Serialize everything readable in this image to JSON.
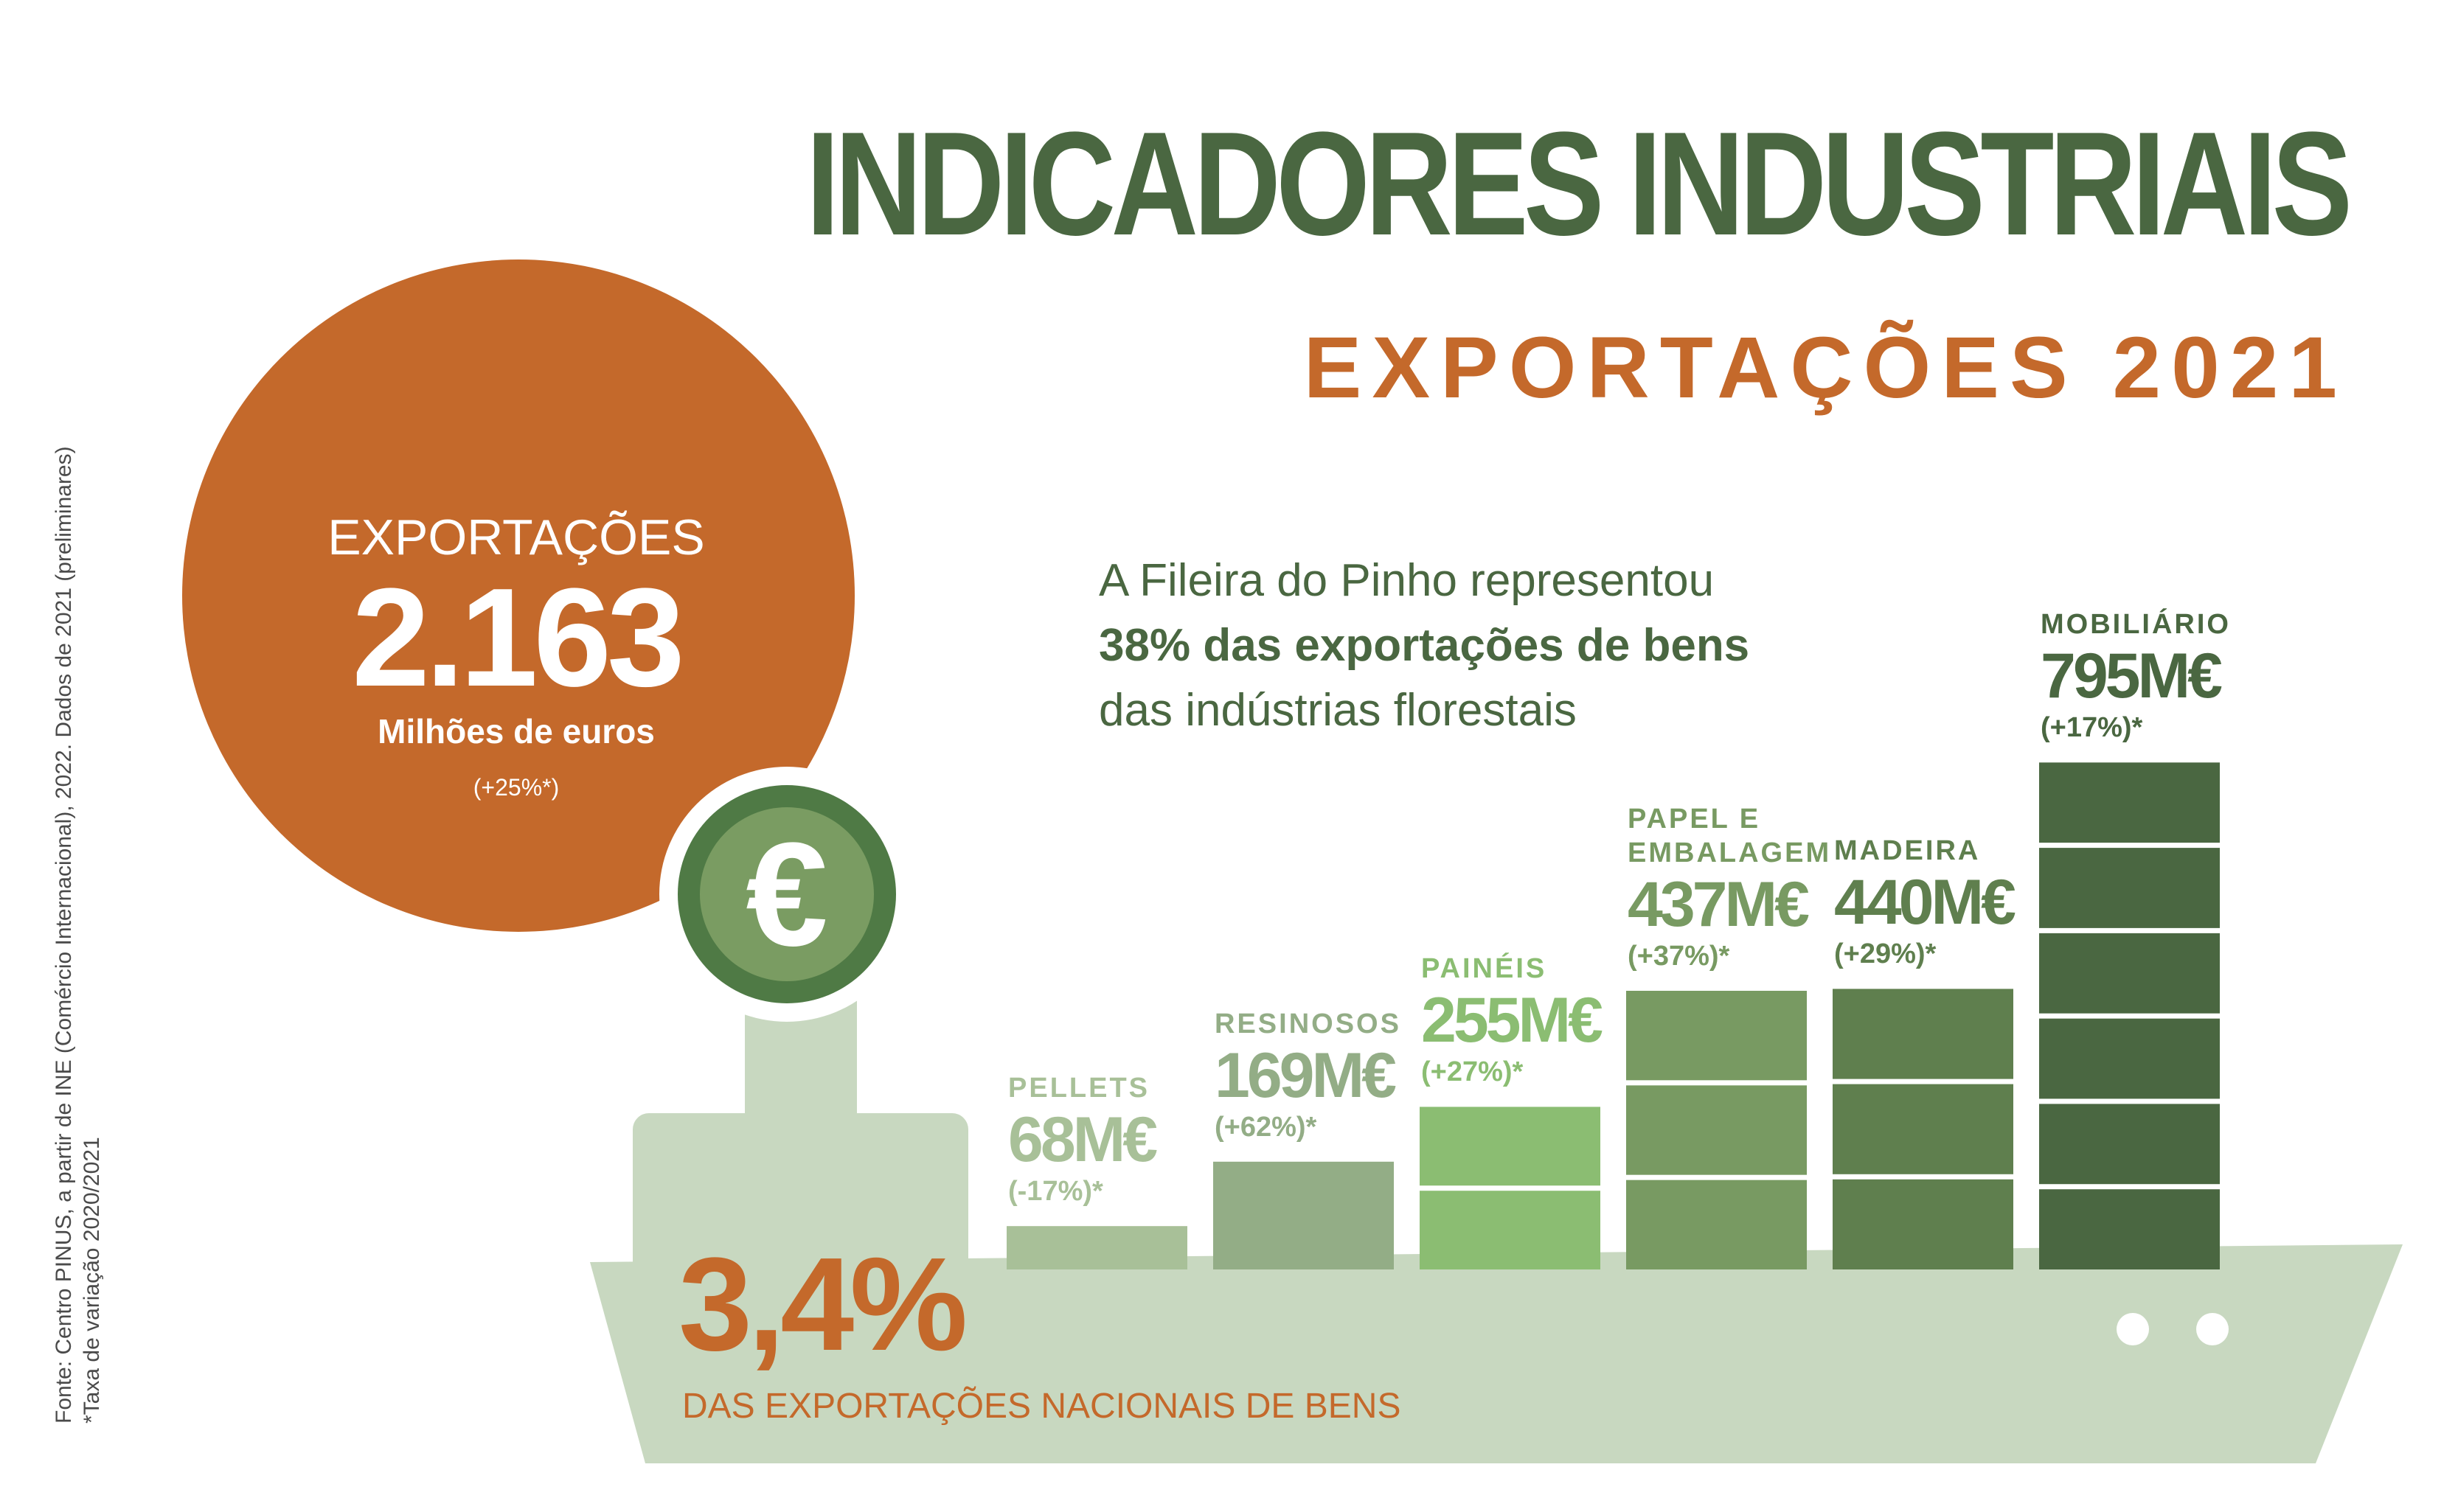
{
  "title": "INDICADORES INDUSTRIAIS",
  "subtitle": "EXPORTAÇÕES 2021",
  "circle": {
    "label": "EXPORTAÇÕES",
    "value": "2.163",
    "unit": "Milhões de euros",
    "variation": "(+25%*)",
    "icon": "euro-icon",
    "icon_glyph": "€"
  },
  "intro": {
    "line1": "A Fileira do Pinho representou",
    "line2": "38% das exportações de bens",
    "line3": "das indústrias florestais"
  },
  "stat": {
    "value": "3,4%",
    "label": "DAS EXPORTAÇÕES NACIONAIS DE BENS"
  },
  "source": {
    "line1": "Fonte: Centro PINUS, a partir de INE (Comércio Internacional), 2022. Dados de 2021 (preliminares)",
    "line2": "*Taxa de variação 2020/2021"
  },
  "colors": {
    "dark_green": "#4a6741",
    "orange": "#c4692b",
    "ship": "#c8d8c0",
    "coin_outer": "#4f7a45",
    "coin_inner": "#7a9c62"
  },
  "chart_data": {
    "type": "bar",
    "title": "",
    "xlabel": "",
    "ylabel": "",
    "ylim": [
      0,
      850
    ],
    "grid": false,
    "categories": [
      "PELLETS",
      "RESINOSOS",
      "PAINÉIS",
      "PAPEL E EMBALAGEM",
      "MADEIRA",
      "MOBILIÁRIO"
    ],
    "values": [
      68,
      169,
      255,
      437,
      440,
      795
    ],
    "value_labels": [
      "68M€",
      "169M€",
      "255M€",
      "437M€",
      "440M€",
      "795M€"
    ],
    "changes": [
      "(-17%)*",
      "(+62%)*",
      "(+27%)*",
      "(+37%)*",
      "(+29%)*",
      "(+17%)*"
    ],
    "label_lines": [
      [
        "PELLETS"
      ],
      [
        "RESINOSOS"
      ],
      [
        "PAINÉIS"
      ],
      [
        "PAPEL E",
        "EMBALAGEM"
      ],
      [
        "MADEIRA"
      ],
      [
        "MOBILIÁRIO"
      ]
    ],
    "colors": [
      "#a8c098",
      "#93ad86",
      "#8bbd72",
      "#789a62",
      "#5f7f4e",
      "#4a6741"
    ]
  }
}
